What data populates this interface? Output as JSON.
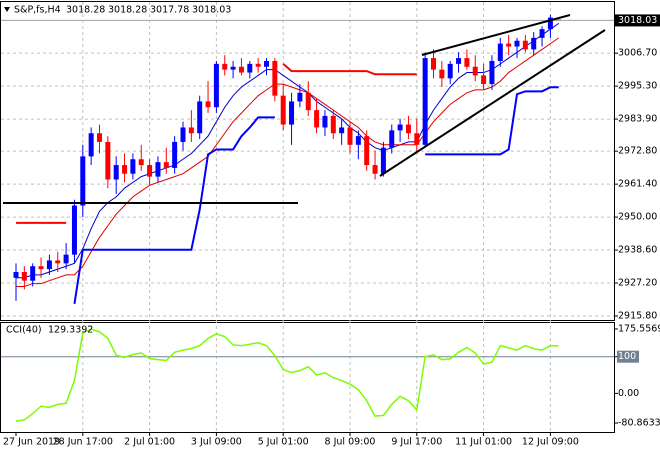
{
  "chart_data": [
    {
      "type": "candlestick",
      "title": "S&P,fs,H4",
      "categories": [
        "27 Jun 2019",
        null,
        null,
        null,
        null,
        null,
        null,
        null,
        "28 Jun 17:00",
        null,
        null,
        null,
        null,
        null,
        null,
        null,
        "2 Jul 01:00",
        null,
        null,
        null,
        null,
        null,
        null,
        null,
        "3 Jul 09:00",
        null,
        null,
        null,
        null,
        null,
        null,
        null,
        "5 Jul 01:00",
        null,
        null,
        null,
        null,
        null,
        null,
        null,
        "8 Jul 09:00",
        null,
        null,
        null,
        null,
        null,
        null,
        null,
        "9 Jul 17:00",
        null,
        null,
        null,
        null,
        null,
        null,
        null,
        "11 Jul 01:00",
        null,
        null,
        null,
        null,
        null,
        null,
        null,
        "12 Jul 09:00",
        null
      ],
      "open": [
        2929,
        2931,
        2928,
        2933,
        2932,
        2935,
        2934,
        2937,
        2954,
        2971,
        2979,
        2976,
        2963,
        2968,
        2965,
        2970,
        2968,
        2964,
        2969,
        2967,
        2976,
        2981,
        2979,
        2990,
        2988,
        3003,
        3001,
        3002,
        3000,
        3003,
        3002,
        3004,
        2992,
        2982,
        2990,
        2993,
        2987,
        2981,
        2985,
        2979,
        2981,
        2975,
        2978,
        2968,
        2965,
        2974,
        2980,
        2982,
        2979,
        2975,
        3005,
        3001,
        2998,
        3003,
        3005,
        3002,
        2999,
        2996,
        3004,
        3010,
        3009,
        3011,
        3008,
        3012,
        3015,
        3018.28
      ],
      "high": [
        2934,
        2933,
        2934,
        2936,
        2937,
        2938,
        2941,
        2956,
        2975,
        2981,
        2982,
        2978,
        2971,
        2972,
        2972,
        2975,
        2970,
        2971,
        2974,
        2978,
        2983,
        2987,
        2992,
        2997,
        3004,
        3006,
        3004,
        3005,
        3004,
        3005,
        3005,
        3005,
        2996,
        2993,
        2996,
        2997,
        2991,
        2987,
        2987,
        2984,
        2983,
        2980,
        2980,
        2973,
        2976,
        2982,
        2984,
        2985,
        2984,
        3007,
        3008,
        3004,
        3004,
        3007,
        3008,
        3006,
        3003,
        3006,
        3012,
        3013,
        3012,
        3013,
        3014,
        3016,
        3020,
        3018.28
      ],
      "low": [
        2921,
        2925,
        2926,
        2929,
        2930,
        2931,
        2932,
        2934,
        2950,
        2968,
        2972,
        2960,
        2958,
        2962,
        2963,
        2966,
        2961,
        2962,
        2965,
        2965,
        2973,
        2976,
        2977,
        2986,
        2986,
        2999,
        2998,
        2999,
        2998,
        3000,
        2999,
        2990,
        2980,
        2975,
        2988,
        2985,
        2979,
        2978,
        2977,
        2975,
        2972,
        2970,
        2966,
        2963,
        2964,
        2972,
        2976,
        2977,
        2972,
        2974,
        2998,
        2995,
        2996,
        3000,
        3001,
        2997,
        2994,
        2994,
        3002,
        3006,
        3005,
        3007,
        3006,
        3009,
        3012,
        3017.78
      ],
      "close": [
        2931,
        2928,
        2933,
        2932,
        2935,
        2934,
        2937,
        2954,
        2971,
        2979,
        2976,
        2963,
        2968,
        2965,
        2970,
        2968,
        2964,
        2969,
        2967,
        2976,
        2981,
        2979,
        2990,
        2988,
        3003,
        3001,
        3002,
        3000,
        3003,
        3002,
        3004,
        2992,
        2982,
        2990,
        2993,
        2987,
        2981,
        2985,
        2979,
        2981,
        2975,
        2978,
        2968,
        2965,
        2974,
        2980,
        2982,
        2979,
        2975,
        3005,
        3001,
        2998,
        3003,
        3005,
        3002,
        2999,
        2996,
        3004,
        3010,
        3009,
        3011,
        3008,
        3012,
        3015,
        3019,
        3018.03
      ],
      "bull_color": "#0000ff",
      "bear_color": "#ff0000",
      "series": [
        {
          "color": "#0000cd",
          "width": 1,
          "values": [
            2929,
            2929,
            2930,
            2930,
            2931,
            2932,
            2933,
            2934,
            2939,
            2946,
            2952,
            2955,
            2957,
            2960,
            2962,
            2964,
            2965,
            2966,
            2967,
            2968,
            2970,
            2972,
            2975,
            2978,
            2983,
            2988,
            2992,
            2995,
            2997,
            2999,
            3001,
            3001,
            2999,
            2997,
            2995,
            2993,
            2990,
            2988,
            2986,
            2984,
            2981,
            2979,
            2976,
            2974,
            2973,
            2974,
            2975,
            2976,
            2976,
            2982,
            2987,
            2991,
            2995,
            2998,
            3000,
            3000,
            3000,
            3001,
            3003,
            3005,
            3007,
            3009,
            3011,
            3013,
            3015,
            3017
          ]
        },
        {
          "color": "#dd0000",
          "width": 1,
          "values": [
            2926,
            2926,
            2927,
            2927,
            2928,
            2929,
            2930,
            2930,
            2933,
            2938,
            2943,
            2947,
            2951,
            2954,
            2957,
            2959,
            2961,
            2962,
            2963,
            2964,
            2965,
            2967,
            2969,
            2971,
            2975,
            2979,
            2983,
            2986,
            2989,
            2992,
            2994,
            2996,
            2996,
            2995,
            2994,
            2993,
            2991,
            2989,
            2987,
            2985,
            2983,
            2981,
            2978,
            2976,
            2975,
            2975,
            2975,
            2975,
            2975,
            2979,
            2983,
            2986,
            2989,
            2991,
            2993,
            2994,
            2994,
            2995,
            2997,
            3000,
            3002,
            3004,
            3006,
            3008,
            3010,
            3012
          ]
        },
        {
          "color": "#ff0000",
          "width": 2,
          "values": [
            2948,
            2948,
            2948,
            2948,
            2948,
            2948,
            2948,
            null,
            null,
            null,
            null,
            null,
            null,
            null,
            null,
            null,
            null,
            null,
            null,
            null,
            null,
            null,
            null,
            null,
            null,
            null,
            null,
            null,
            null,
            null,
            null,
            null,
            3003,
            3000.5,
            3000.5,
            3000.5,
            3000.5,
            3000.5,
            3000.5,
            3000.5,
            3000.5,
            3000.5,
            3000.5,
            2999.4,
            2999.4,
            2999.4,
            2999.4,
            2999.4,
            2999.4,
            null,
            null,
            null,
            null,
            null,
            null,
            null,
            null,
            null,
            null,
            null,
            null,
            null,
            null,
            null,
            null,
            null
          ]
        },
        {
          "color": "#0000ff",
          "width": 2,
          "values": [
            null,
            null,
            null,
            null,
            null,
            null,
            null,
            2920,
            2938.7,
            2938.7,
            2938.7,
            2938.7,
            2938.7,
            2938.7,
            2938.7,
            2938.7,
            2938.7,
            2938.7,
            2938.7,
            2938.7,
            2938.7,
            2938.7,
            2952.6,
            2971.7,
            2973.4,
            2973.4,
            2973.4,
            2978,
            2981,
            2984.5,
            2984.5,
            2984.5,
            null,
            null,
            null,
            null,
            null,
            null,
            null,
            null,
            null,
            null,
            null,
            null,
            null,
            null,
            null,
            null,
            null,
            2971.7,
            2971.7,
            2971.7,
            2971.7,
            2971.7,
            2971.7,
            2971.7,
            2971.7,
            2971.7,
            2971.7,
            2973.4,
            2992.5,
            2993.5,
            2993.5,
            2993.5,
            2994.9,
            2994.9
          ]
        }
      ],
      "ylim": [
        2914.4,
        3024.4
      ],
      "yticks": [
        {
          "value": 3006.7,
          "label": "3006.70"
        },
        {
          "value": 2995.3,
          "label": "2995.30"
        },
        {
          "value": 2983.9,
          "label": "2983.90"
        },
        {
          "value": 2972.8,
          "label": "2972.80"
        },
        {
          "value": 2961.4,
          "label": "2961.40"
        },
        {
          "value": 2950,
          "label": "2950.00"
        },
        {
          "value": 2938.6,
          "label": "2938.60"
        },
        {
          "value": 2927.2,
          "label": "2927.20"
        },
        {
          "value": 2915.8,
          "label": "2915.80"
        }
      ],
      "grid": true
    },
    {
      "type": "line",
      "title": "CCI(40)",
      "series": [
        {
          "color": "#7cfc00",
          "width": 1.5,
          "values": [
            -76,
            -72,
            -55,
            -35,
            -38,
            -30,
            -27,
            35,
            165,
            175,
            168,
            150,
            104,
            98,
            106,
            110,
            95,
            92,
            90,
            112,
            118,
            122,
            130,
            150,
            162,
            155,
            132,
            130,
            134,
            138,
            130,
            103,
            65,
            57,
            62,
            73,
            50,
            56,
            43,
            35,
            25,
            10,
            -20,
            -62,
            -60,
            -30,
            -8,
            -20,
            -45,
            100,
            105,
            92,
            94,
            112,
            125,
            110,
            80,
            85,
            130,
            124,
            118,
            130,
            122,
            118,
            130,
            129.3392
          ]
        }
      ],
      "ylim": [
        -105.2,
        191.8
      ],
      "yticks": [
        175.5569,
        100,
        {
          "value": 0,
          "label": "0.00"
        },
        -80.8633
      ],
      "levels": [
        100
      ],
      "level_color": "#708090"
    }
  ]
}
